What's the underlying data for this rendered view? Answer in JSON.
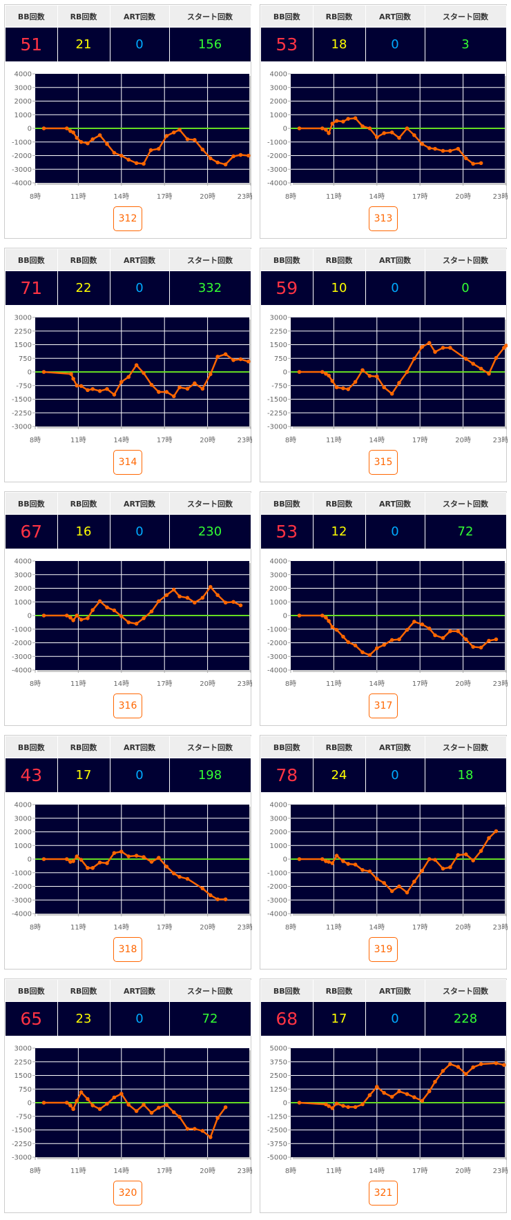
{
  "headers": [
    "BB回数",
    "RB回数",
    "ART回数",
    "スタート回数"
  ],
  "x_ticks": [
    "8時",
    "11時",
    "14時",
    "17時",
    "20時",
    "23時"
  ],
  "colors": {
    "bb": "#ff3344",
    "rb": "#ffff00",
    "art": "#00aaff",
    "start": "#33ff33",
    "plot_bg": "#000033",
    "zero_line": "#66dd22",
    "series": "#ff6600"
  },
  "machines": [
    {
      "number": "312",
      "bb": "51",
      "rb": "21",
      "art": "0",
      "start": "156"
    },
    {
      "number": "313",
      "bb": "53",
      "rb": "18",
      "art": "0",
      "start": "3"
    },
    {
      "number": "314",
      "bb": "71",
      "rb": "22",
      "art": "0",
      "start": "332"
    },
    {
      "number": "315",
      "bb": "59",
      "rb": "10",
      "art": "0",
      "start": "0"
    },
    {
      "number": "316",
      "bb": "67",
      "rb": "16",
      "art": "0",
      "start": "230"
    },
    {
      "number": "317",
      "bb": "53",
      "rb": "12",
      "art": "0",
      "start": "72"
    },
    {
      "number": "318",
      "bb": "43",
      "rb": "17",
      "art": "0",
      "start": "198"
    },
    {
      "number": "319",
      "bb": "78",
      "rb": "24",
      "art": "0",
      "start": "18"
    },
    {
      "number": "320",
      "bb": "65",
      "rb": "23",
      "art": "0",
      "start": "72"
    },
    {
      "number": "321",
      "bb": "68",
      "rb": "17",
      "art": "0",
      "start": "228"
    }
  ],
  "chart_data": [
    {
      "type": "line",
      "title": "312",
      "xlim": [
        8,
        23
      ],
      "ylim": [
        -4000,
        4000
      ],
      "y_ticks": [
        "4000",
        "3000",
        "2000",
        "1000",
        "0",
        "-1000",
        "-2000",
        "-3000",
        "-4000"
      ],
      "points": [
        [
          8.6,
          0
        ],
        [
          10.2,
          0
        ],
        [
          10.45,
          -200
        ],
        [
          10.65,
          -300
        ],
        [
          10.9,
          -700
        ],
        [
          11.2,
          -1000
        ],
        [
          11.65,
          -1100
        ],
        [
          12.0,
          -800
        ],
        [
          12.5,
          -500
        ],
        [
          13.0,
          -1150
        ],
        [
          13.5,
          -1800
        ],
        [
          14.0,
          -2000
        ],
        [
          14.5,
          -2300
        ],
        [
          15.05,
          -2550
        ],
        [
          15.55,
          -2600
        ],
        [
          16.05,
          -1600
        ],
        [
          16.6,
          -1500
        ],
        [
          17.15,
          -550
        ],
        [
          17.65,
          -300
        ],
        [
          18.05,
          -100
        ],
        [
          18.6,
          -800
        ],
        [
          19.1,
          -850
        ],
        [
          19.65,
          -1550
        ],
        [
          20.2,
          -2200
        ],
        [
          20.7,
          -2500
        ],
        [
          21.25,
          -2650
        ],
        [
          21.8,
          -2050
        ],
        [
          22.3,
          -1950
        ],
        [
          22.85,
          -2000
        ]
      ]
    },
    {
      "type": "line",
      "title": "313",
      "xlim": [
        8,
        23
      ],
      "ylim": [
        -4000,
        4000
      ],
      "y_ticks": [
        "4000",
        "3000",
        "2000",
        "1000",
        "0",
        "-1000",
        "-2000",
        "-3000",
        "-4000"
      ],
      "points": [
        [
          8.6,
          0
        ],
        [
          10.2,
          0
        ],
        [
          10.45,
          -100
        ],
        [
          10.65,
          -350
        ],
        [
          10.9,
          350
        ],
        [
          11.2,
          550
        ],
        [
          11.65,
          500
        ],
        [
          12.0,
          700
        ],
        [
          12.5,
          750
        ],
        [
          13.0,
          150
        ],
        [
          13.5,
          0
        ],
        [
          14.0,
          -650
        ],
        [
          14.5,
          -350
        ],
        [
          15.05,
          -300
        ],
        [
          15.55,
          -700
        ],
        [
          16.1,
          0
        ],
        [
          16.6,
          -500
        ],
        [
          17.15,
          -1150
        ],
        [
          17.65,
          -1450
        ],
        [
          18.05,
          -1500
        ],
        [
          18.6,
          -1650
        ],
        [
          19.1,
          -1650
        ],
        [
          19.65,
          -1500
        ],
        [
          20.2,
          -2200
        ],
        [
          20.7,
          -2600
        ],
        [
          21.25,
          -2550
        ]
      ]
    },
    {
      "type": "line",
      "title": "314",
      "xlim": [
        8,
        23
      ],
      "ylim": [
        -3000,
        3000
      ],
      "y_ticks": [
        "3000",
        "2250",
        "1500",
        "750",
        "0",
        "-750",
        "-1500",
        "-2250",
        "-3000"
      ],
      "points": [
        [
          8.6,
          0
        ],
        [
          10.5,
          -110
        ],
        [
          10.65,
          -375
        ],
        [
          10.9,
          -750
        ],
        [
          11.2,
          -775
        ],
        [
          11.65,
          -1000
        ],
        [
          12.0,
          -940
        ],
        [
          12.5,
          -1050
        ],
        [
          13.0,
          -940
        ],
        [
          13.5,
          -1250
        ],
        [
          14.0,
          -550
        ],
        [
          14.5,
          -275
        ],
        [
          15.05,
          375
        ],
        [
          15.55,
          -60
        ],
        [
          16.1,
          -710
        ],
        [
          16.6,
          -1100
        ],
        [
          17.15,
          -1100
        ],
        [
          17.65,
          -1340
        ],
        [
          18.05,
          -850
        ],
        [
          18.6,
          -925
        ],
        [
          19.1,
          -625
        ],
        [
          19.65,
          -925
        ],
        [
          20.2,
          -125
        ],
        [
          20.7,
          840
        ],
        [
          21.25,
          975
        ],
        [
          21.8,
          650
        ],
        [
          22.3,
          700
        ],
        [
          22.85,
          575
        ]
      ]
    },
    {
      "type": "line",
      "title": "315",
      "xlim": [
        8,
        23
      ],
      "ylim": [
        -3000,
        3000
      ],
      "y_ticks": [
        "3000",
        "2250",
        "1500",
        "750",
        "0",
        "-750",
        "-1500",
        "-2250",
        "-3000"
      ],
      "points": [
        [
          8.6,
          0
        ],
        [
          10.2,
          0
        ],
        [
          10.45,
          -100
        ],
        [
          10.65,
          -200
        ],
        [
          10.9,
          -500
        ],
        [
          11.2,
          -850
        ],
        [
          11.65,
          -900
        ],
        [
          12.0,
          -950
        ],
        [
          12.5,
          -550
        ],
        [
          13.0,
          100
        ],
        [
          13.5,
          -220
        ],
        [
          14.0,
          -250
        ],
        [
          14.5,
          -850
        ],
        [
          15.05,
          -1200
        ],
        [
          15.55,
          -600
        ],
        [
          16.1,
          0
        ],
        [
          16.6,
          730
        ],
        [
          17.15,
          1380
        ],
        [
          17.65,
          1600
        ],
        [
          18.05,
          1100
        ],
        [
          18.6,
          1330
        ],
        [
          19.1,
          1330
        ],
        [
          20.2,
          720
        ],
        [
          20.7,
          450
        ],
        [
          21.25,
          180
        ],
        [
          21.8,
          -100
        ],
        [
          22.3,
          770
        ],
        [
          22.85,
          1330
        ],
        [
          23.0,
          1450
        ]
      ]
    },
    {
      "type": "line",
      "title": "316",
      "xlim": [
        8,
        23
      ],
      "ylim": [
        -4000,
        4000
      ],
      "y_ticks": [
        "4000",
        "3000",
        "2000",
        "1000",
        "0",
        "-1000",
        "-2000",
        "-3000",
        "-4000"
      ],
      "points": [
        [
          8.6,
          0
        ],
        [
          10.2,
          0
        ],
        [
          10.45,
          -150
        ],
        [
          10.65,
          -350
        ],
        [
          10.9,
          0
        ],
        [
          11.2,
          -300
        ],
        [
          11.65,
          -200
        ],
        [
          12.0,
          400
        ],
        [
          12.5,
          1050
        ],
        [
          13.0,
          600
        ],
        [
          13.5,
          380
        ],
        [
          14.0,
          -50
        ],
        [
          14.5,
          -500
        ],
        [
          15.05,
          -600
        ],
        [
          15.55,
          -200
        ],
        [
          16.1,
          300
        ],
        [
          16.6,
          1050
        ],
        [
          17.15,
          1500
        ],
        [
          17.65,
          1900
        ],
        [
          18.05,
          1400
        ],
        [
          18.6,
          1300
        ],
        [
          19.1,
          950
        ],
        [
          19.65,
          1300
        ],
        [
          20.2,
          2100
        ],
        [
          20.7,
          1500
        ],
        [
          21.25,
          950
        ],
        [
          21.8,
          1000
        ],
        [
          22.3,
          750
        ]
      ]
    },
    {
      "type": "line",
      "title": "317",
      "xlim": [
        8,
        23
      ],
      "ylim": [
        -4000,
        4000
      ],
      "y_ticks": [
        "4000",
        "3000",
        "2000",
        "1000",
        "0",
        "-1000",
        "-2000",
        "-3000",
        "-4000"
      ],
      "points": [
        [
          8.6,
          0
        ],
        [
          10.2,
          0
        ],
        [
          10.45,
          -150
        ],
        [
          10.65,
          -400
        ],
        [
          10.9,
          -850
        ],
        [
          11.2,
          -1050
        ],
        [
          11.65,
          -1550
        ],
        [
          12.0,
          -1950
        ],
        [
          12.5,
          -2200
        ],
        [
          13.0,
          -2700
        ],
        [
          13.5,
          -2900
        ],
        [
          14.0,
          -2400
        ],
        [
          14.5,
          -2150
        ],
        [
          15.05,
          -1800
        ],
        [
          15.55,
          -1750
        ],
        [
          16.1,
          -1050
        ],
        [
          16.6,
          -450
        ],
        [
          17.15,
          -650
        ],
        [
          17.65,
          -950
        ],
        [
          18.05,
          -1450
        ],
        [
          18.6,
          -1650
        ],
        [
          19.1,
          -1150
        ],
        [
          19.65,
          -1150
        ],
        [
          20.2,
          -1750
        ],
        [
          20.7,
          -2300
        ],
        [
          21.25,
          -2350
        ],
        [
          21.8,
          -1850
        ],
        [
          22.3,
          -1750
        ]
      ]
    },
    {
      "type": "line",
      "title": "318",
      "xlim": [
        8,
        23
      ],
      "ylim": [
        -4000,
        4000
      ],
      "y_ticks": [
        "4000",
        "3000",
        "2000",
        "1000",
        "0",
        "-1000",
        "-2000",
        "-3000",
        "-4000"
      ],
      "points": [
        [
          8.6,
          0
        ],
        [
          10.2,
          0
        ],
        [
          10.45,
          -200
        ],
        [
          10.65,
          -150
        ],
        [
          10.9,
          200
        ],
        [
          11.2,
          -50
        ],
        [
          11.65,
          -650
        ],
        [
          12.0,
          -650
        ],
        [
          12.5,
          -250
        ],
        [
          13.0,
          -300
        ],
        [
          13.5,
          450
        ],
        [
          14.0,
          550
        ],
        [
          14.5,
          200
        ],
        [
          15.05,
          250
        ],
        [
          15.55,
          150
        ],
        [
          16.1,
          -200
        ],
        [
          16.6,
          100
        ],
        [
          17.15,
          -550
        ],
        [
          17.65,
          -1050
        ],
        [
          18.05,
          -1300
        ],
        [
          18.6,
          -1450
        ],
        [
          19.65,
          -2150
        ],
        [
          20.2,
          -2650
        ],
        [
          20.7,
          -2950
        ],
        [
          21.25,
          -2950
        ]
      ]
    },
    {
      "type": "line",
      "title": "319",
      "xlim": [
        8,
        23
      ],
      "ylim": [
        -4000,
        4000
      ],
      "y_ticks": [
        "4000",
        "3000",
        "2000",
        "1000",
        "0",
        "-1000",
        "-2000",
        "-3000",
        "-4000"
      ],
      "points": [
        [
          8.6,
          0
        ],
        [
          10.2,
          0
        ],
        [
          10.45,
          -150
        ],
        [
          10.65,
          -200
        ],
        [
          10.9,
          -300
        ],
        [
          11.2,
          250
        ],
        [
          11.65,
          -150
        ],
        [
          12.0,
          -350
        ],
        [
          12.5,
          -400
        ],
        [
          13.0,
          -800
        ],
        [
          13.5,
          -900
        ],
        [
          14.0,
          -1450
        ],
        [
          14.5,
          -1750
        ],
        [
          15.05,
          -2350
        ],
        [
          15.55,
          -2000
        ],
        [
          16.1,
          -2450
        ],
        [
          16.6,
          -1650
        ],
        [
          17.15,
          -850
        ],
        [
          17.65,
          0
        ],
        [
          18.05,
          -50
        ],
        [
          18.6,
          -700
        ],
        [
          19.1,
          -600
        ],
        [
          19.65,
          300
        ],
        [
          20.2,
          350
        ],
        [
          20.7,
          -100
        ],
        [
          21.25,
          600
        ],
        [
          21.8,
          1550
        ],
        [
          22.3,
          2050
        ]
      ]
    },
    {
      "type": "line",
      "title": "320",
      "xlim": [
        8,
        23
      ],
      "ylim": [
        -3000,
        3000
      ],
      "y_ticks": [
        "3000",
        "2250",
        "1500",
        "750",
        "0",
        "-750",
        "-1500",
        "-2250",
        "-3000"
      ],
      "points": [
        [
          8.6,
          0
        ],
        [
          10.2,
          0
        ],
        [
          10.45,
          -150
        ],
        [
          10.65,
          -350
        ],
        [
          10.9,
          100
        ],
        [
          11.2,
          575
        ],
        [
          11.65,
          200
        ],
        [
          12.0,
          -150
        ],
        [
          12.5,
          -350
        ],
        [
          13.0,
          -60
        ],
        [
          13.5,
          290
        ],
        [
          14.0,
          490
        ],
        [
          14.5,
          -110
        ],
        [
          15.05,
          -460
        ],
        [
          15.55,
          -110
        ],
        [
          16.1,
          -560
        ],
        [
          16.6,
          -275
        ],
        [
          17.15,
          -125
        ],
        [
          17.65,
          -525
        ],
        [
          18.05,
          -775
        ],
        [
          18.6,
          -1440
        ],
        [
          19.1,
          -1440
        ],
        [
          19.65,
          -1550
        ],
        [
          20.2,
          -1900
        ],
        [
          20.7,
          -840
        ],
        [
          21.25,
          -250
        ]
      ]
    },
    {
      "type": "line",
      "title": "321",
      "xlim": [
        8,
        23
      ],
      "ylim": [
        -5000,
        5000
      ],
      "y_ticks": [
        "5000",
        "3750",
        "2500",
        "1250",
        "0",
        "-1250",
        "-2500",
        "-3750",
        "-5000"
      ],
      "points": [
        [
          8.6,
          0
        ],
        [
          10.45,
          -150
        ],
        [
          10.65,
          -310
        ],
        [
          10.9,
          -500
        ],
        [
          11.2,
          -80
        ],
        [
          11.65,
          -290
        ],
        [
          12.0,
          -400
        ],
        [
          12.5,
          -400
        ],
        [
          13.0,
          -150
        ],
        [
          13.5,
          690
        ],
        [
          14.0,
          1460
        ],
        [
          14.5,
          900
        ],
        [
          15.05,
          540
        ],
        [
          15.55,
          1040
        ],
        [
          16.1,
          790
        ],
        [
          16.6,
          500
        ],
        [
          17.15,
          170
        ],
        [
          17.65,
          1040
        ],
        [
          18.05,
          1920
        ],
        [
          18.6,
          2920
        ],
        [
          19.1,
          3540
        ],
        [
          19.65,
          3290
        ],
        [
          20.2,
          2625
        ],
        [
          20.7,
          3250
        ],
        [
          21.25,
          3540
        ],
        [
          22.3,
          3625
        ],
        [
          22.85,
          3460
        ]
      ]
    }
  ]
}
